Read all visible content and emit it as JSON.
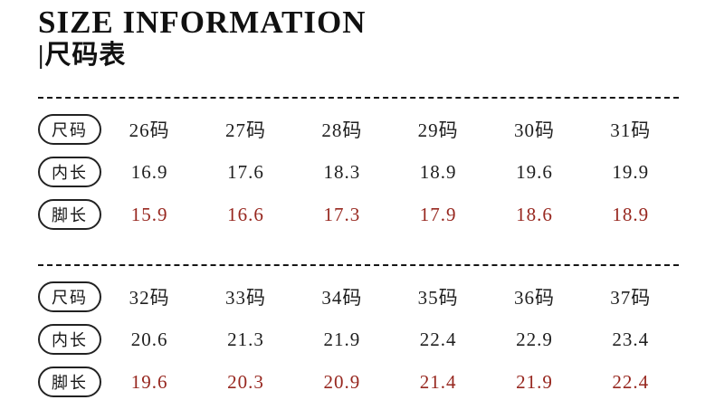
{
  "header": {
    "title": "SIZE INFORMATION",
    "subtitle": "|尺码表"
  },
  "colors": {
    "text": "#1a1a1a",
    "accent_red": "#97271f"
  },
  "tables": [
    {
      "rows": [
        {
          "label": "尺码",
          "highlight": false,
          "values": [
            "26码",
            "27码",
            "28码",
            "29码",
            "30码",
            "31码"
          ]
        },
        {
          "label": "内长",
          "highlight": false,
          "values": [
            "16.9",
            "17.6",
            "18.3",
            "18.9",
            "19.6",
            "19.9"
          ]
        },
        {
          "label": "脚长",
          "highlight": true,
          "values": [
            "15.9",
            "16.6",
            "17.3",
            "17.9",
            "18.6",
            "18.9"
          ]
        }
      ]
    },
    {
      "rows": [
        {
          "label": "尺码",
          "highlight": false,
          "values": [
            "32码",
            "33码",
            "34码",
            "35码",
            "36码",
            "37码"
          ]
        },
        {
          "label": "内长",
          "highlight": false,
          "values": [
            "20.6",
            "21.3",
            "21.9",
            "22.4",
            "22.9",
            "23.4"
          ]
        },
        {
          "label": "脚长",
          "highlight": true,
          "values": [
            "19.6",
            "20.3",
            "20.9",
            "21.4",
            "21.9",
            "22.4"
          ]
        }
      ]
    }
  ]
}
